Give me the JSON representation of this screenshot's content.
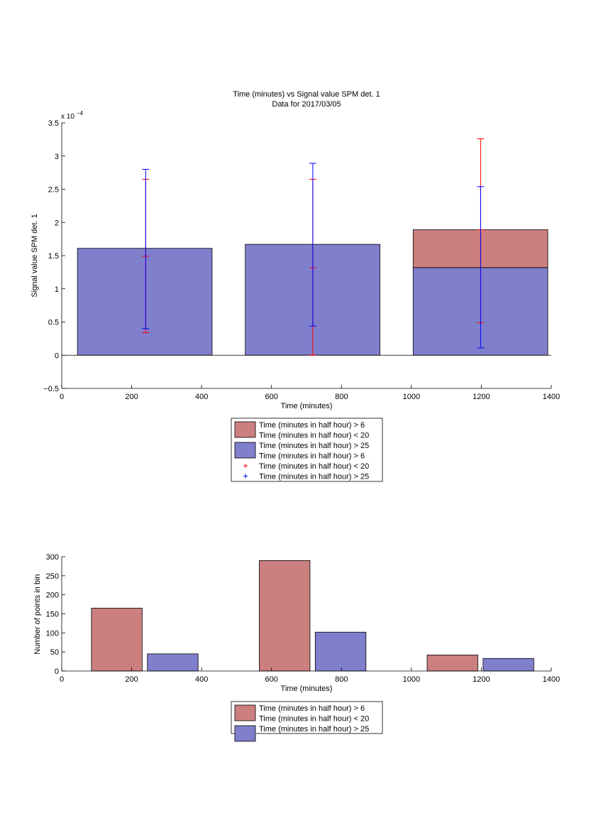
{
  "chart_data": [
    {
      "type": "bar",
      "title": "Time (minutes) vs Signal value SPM det. 1",
      "subtitle": "Data for 2017/03/05",
      "xlabel": "Time (minutes)",
      "ylabel": "Signal value SPM det. 1",
      "exponent_base": "x 10",
      "exponent_power": "−4",
      "xlim": [
        0,
        1400
      ],
      "ylim": [
        -0.5,
        3.5
      ],
      "xticks": [
        "0",
        "200",
        "400",
        "600",
        "800",
        "1000",
        "1200",
        "1400"
      ],
      "yticks": [
        "−0.5",
        "0",
        "0.5",
        "1",
        "1.5",
        "2",
        "2.5",
        "3",
        "3.5"
      ],
      "bars": [
        {
          "x_start": 45,
          "x_end": 430,
          "blue_top": 1.61,
          "red_top": null
        },
        {
          "x_start": 525,
          "x_end": 910,
          "blue_top": 1.67,
          "red_top": null
        },
        {
          "x_start": 1005,
          "x_end": 1390,
          "blue_top": 1.32,
          "red_top": 1.89
        }
      ],
      "errorbars_red": [
        {
          "x": 240,
          "low": 0.34,
          "mid": 1.49,
          "high": 2.65
        },
        {
          "x": 718,
          "low": 0.0,
          "mid": 1.32,
          "high": 2.65
        },
        {
          "x": 1198,
          "low": 0.49,
          "mid": 1.89,
          "high": 3.26
        }
      ],
      "errorbars_blue": [
        {
          "x": 240,
          "low": 0.4,
          "high": 2.8
        },
        {
          "x": 718,
          "low": 0.44,
          "high": 2.89
        },
        {
          "x": 1198,
          "low": 0.11,
          "high": 2.54
        }
      ],
      "legend": {
        "placement": "below",
        "entries": [
          {
            "label": "Time (minutes in half hour) > 6",
            "kind": "patch",
            "color": "#cc7f7f"
          },
          {
            "label": "Time (minutes in half hour) < 20",
            "kind": "text"
          },
          {
            "label": "Time (minutes in half hour) > 25",
            "kind": "patch",
            "color": "#7f7fcc"
          },
          {
            "label": "Time (minutes in half hour) > 6",
            "kind": "text"
          },
          {
            "label": "Time (minutes in half hour) < 20",
            "kind": "marker",
            "color": "#ff0000"
          },
          {
            "label": "Time (minutes in half hour) > 25",
            "kind": "marker",
            "color": "#0000ff"
          }
        ]
      },
      "colors": {
        "red_fill": "#cc7f7f",
        "blue_fill": "#7f7fcc",
        "red_err": "#ff0000",
        "blue_err": "#0000ff"
      }
    },
    {
      "type": "bar",
      "xlabel": "Time (minutes)",
      "ylabel": "Number of points in bin",
      "xlim": [
        0,
        1400
      ],
      "ylim": [
        0,
        300
      ],
      "xticks": [
        "0",
        "200",
        "400",
        "600",
        "800",
        "1000",
        "1200",
        "1400"
      ],
      "yticks": [
        "0",
        "50",
        "100",
        "150",
        "200",
        "250",
        "300"
      ],
      "series": [
        {
          "color": "#cc7f7f",
          "bars": [
            {
              "x_start": 85,
              "x_end": 230,
              "value": 165
            },
            {
              "x_start": 565,
              "x_end": 710,
              "value": 290
            },
            {
              "x_start": 1045,
              "x_end": 1190,
              "value": 42
            }
          ]
        },
        {
          "color": "#7f7fcc",
          "bars": [
            {
              "x_start": 245,
              "x_end": 390,
              "value": 45
            },
            {
              "x_start": 725,
              "x_end": 870,
              "value": 102
            },
            {
              "x_start": 1205,
              "x_end": 1350,
              "value": 33
            }
          ]
        }
      ],
      "legend": {
        "placement": "below",
        "entries": [
          {
            "label": "Time (minutes in half hour) > 6",
            "kind": "patch",
            "color": "#cc7f7f"
          },
          {
            "label": "Time (minutes in half hour) < 20",
            "kind": "text"
          },
          {
            "label": "Time (minutes in half hour) > 25",
            "kind": "patch",
            "color": "#7f7fcc"
          }
        ]
      }
    }
  ]
}
